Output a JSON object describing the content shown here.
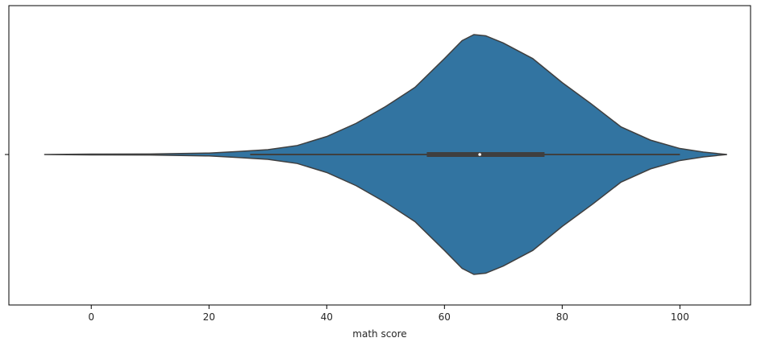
{
  "chart_data": {
    "type": "violin",
    "xlabel": "math score",
    "ylabel": "",
    "xlim": [
      -14,
      112
    ],
    "x_ticks": [
      0,
      20,
      40,
      60,
      80,
      100
    ],
    "grid": false,
    "colors": {
      "violin_fill": "#3274a1",
      "violin_edge": "#3f3f3f",
      "box": "#3f3f3f",
      "median": "#ffffff",
      "frame": "#000000"
    },
    "violin": {
      "min": 0,
      "q1": 57,
      "median": 66,
      "q3": 77,
      "max": 100,
      "whisker_low": 27,
      "whisker_high": 100,
      "support": [
        -8,
        108
      ],
      "density": [
        [
          -8,
          0.0
        ],
        [
          0,
          0.003
        ],
        [
          10,
          0.004
        ],
        [
          20,
          0.012
        ],
        [
          25,
          0.025
        ],
        [
          30,
          0.04
        ],
        [
          35,
          0.075
        ],
        [
          40,
          0.15
        ],
        [
          45,
          0.26
        ],
        [
          50,
          0.4
        ],
        [
          55,
          0.56
        ],
        [
          60,
          0.8
        ],
        [
          63,
          0.95
        ],
        [
          65,
          1.0
        ],
        [
          67,
          0.99
        ],
        [
          70,
          0.93
        ],
        [
          75,
          0.8
        ],
        [
          80,
          0.6
        ],
        [
          85,
          0.42
        ],
        [
          90,
          0.23
        ],
        [
          95,
          0.12
        ],
        [
          100,
          0.05
        ],
        [
          104,
          0.02
        ],
        [
          108,
          0.0
        ]
      ]
    }
  }
}
